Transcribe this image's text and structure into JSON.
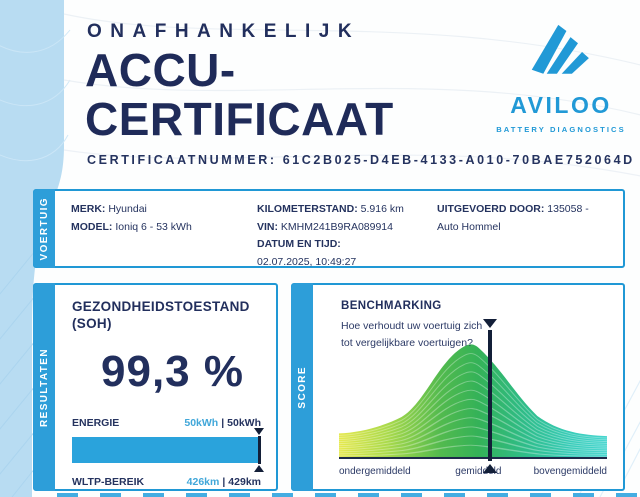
{
  "header": {
    "kicker": "ONAFHANKELIJK",
    "title_line1": "ACCU-",
    "title_line2": "CERTIFICAAT",
    "certificate_label": "CERTIFICAATNUMMER:",
    "certificate_number": "61C2B025-D4EB-4133-A010-70BAE752064D"
  },
  "brand": {
    "wordmark": "AVILOO",
    "tagline": "BATTERY DIAGNOSTICS",
    "accent_color": "#2199d6"
  },
  "vehicle": {
    "tab": "VOERTUIG",
    "merk_label": "MERK:",
    "merk_value": "Hyundai",
    "model_label": "MODEL:",
    "model_value": "Ioniq 6 - 53 kWh",
    "km_label": "KILOMETERSTAND:",
    "km_value": "5.916 km",
    "vin_label": "VIN:",
    "vin_value": "KMHM241B9RA089914",
    "datetime_label": "DATUM EN TIJD:",
    "datetime_value": "02.07.2025, 10:49:27",
    "executor_label": "UITGEVOERD DOOR:",
    "executor_value": "135058 - Auto Hommel"
  },
  "results": {
    "tab": "RESULTATEN",
    "soh_label": "GEZONDHEIDSTOESTAND (SOH)",
    "soh_value": "99,3 %",
    "energy_label": "ENERGIE",
    "energy_current": "50kWh",
    "separator": "|",
    "energy_max": "50kWh",
    "range_label": "WLTP-BEREIK",
    "range_current": "426km",
    "range_max": "429km",
    "bar_percent": 99.3,
    "bar_color": "#2aa3dc",
    "value_color": "#41a7d9"
  },
  "score": {
    "tab": "SCORE",
    "title": "BENCHMARKING",
    "question": "Hoe verhoudt uw voertuig zich tot vergelijkbare voertuigen?",
    "axis_low": "ondergemiddeld",
    "axis_mid": "gemiddeld",
    "axis_high": "bovengemiddeld",
    "marker_position_percent": 56.5,
    "curve_type": "bell-distribution",
    "curve_colors": [
      "#e6e94f",
      "#aada4b",
      "#52ba4e",
      "#34b258",
      "#2fbd8b",
      "#46d6cf"
    ]
  }
}
